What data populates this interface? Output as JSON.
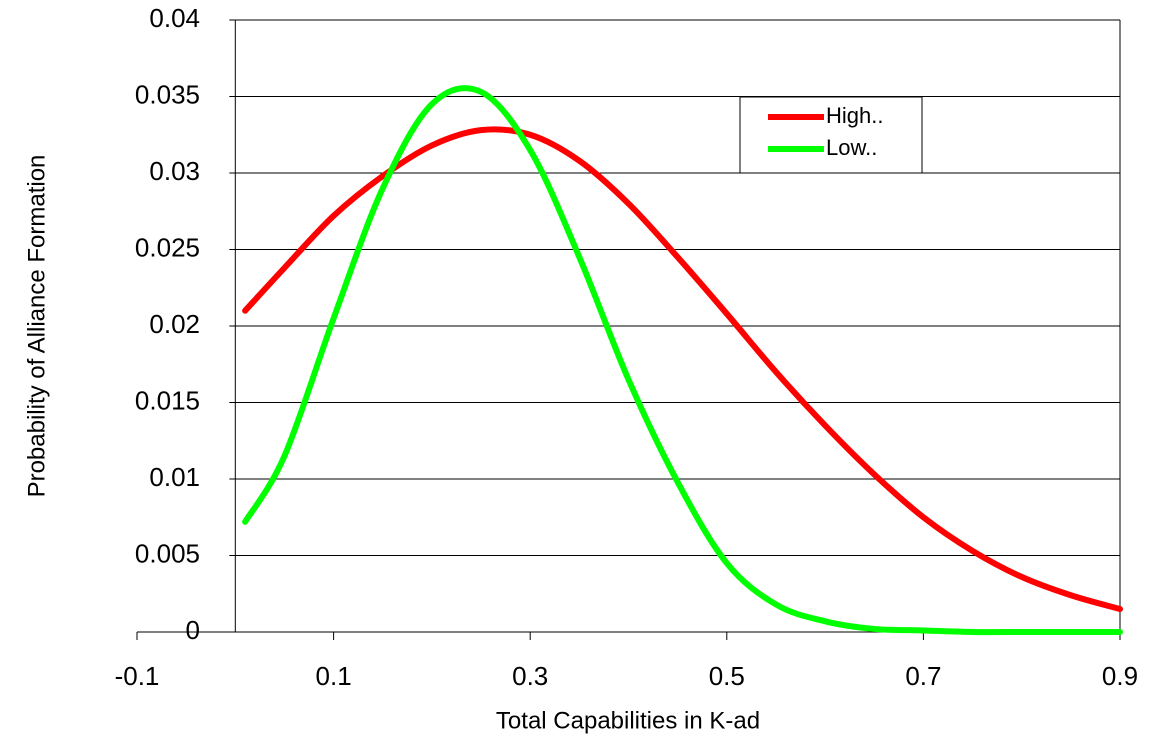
{
  "chart_data": {
    "type": "line",
    "x_label": "Total Capabilities in K-ad",
    "y_label": "Probability of Alliance Formation",
    "x": [
      0.01,
      0.05,
      0.1,
      0.15,
      0.2,
      0.25,
      0.3,
      0.35,
      0.4,
      0.45,
      0.5,
      0.55,
      0.6,
      0.65,
      0.7,
      0.75,
      0.8,
      0.85,
      0.9
    ],
    "series": [
      {
        "name": "High..",
        "color": "#ff0000",
        "values": [
          0.021,
          0.0238,
          0.0272,
          0.0298,
          0.0318,
          0.0328,
          0.0325,
          0.0308,
          0.028,
          0.0245,
          0.0208,
          0.017,
          0.0135,
          0.0103,
          0.0075,
          0.0053,
          0.0036,
          0.0024,
          0.0015
        ]
      },
      {
        "name": "Low..",
        "color": "#00ff00",
        "values": [
          0.0072,
          0.0115,
          0.0205,
          0.029,
          0.0345,
          0.0353,
          0.0315,
          0.0245,
          0.0165,
          0.0098,
          0.0045,
          0.0018,
          0.0007,
          0.0002,
          0.0001,
          0,
          0,
          0,
          0
        ]
      }
    ],
    "xlim": [
      -0.1,
      0.9
    ],
    "xticks": [
      -0.1,
      0.1,
      0.3,
      0.5,
      0.7,
      0.9
    ],
    "ylim": [
      0,
      0.04
    ],
    "yticks": [
      0,
      0.005,
      0.01,
      0.015,
      0.02,
      0.025,
      0.03,
      0.035,
      0.04
    ],
    "grid": true,
    "legend": "upper-right"
  }
}
